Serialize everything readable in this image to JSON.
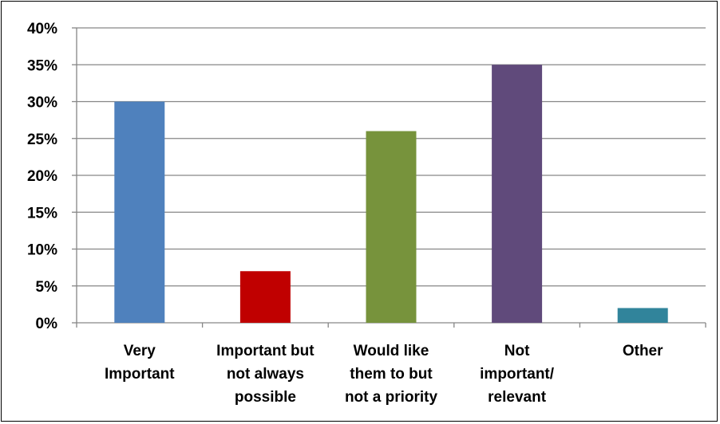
{
  "chart_data": {
    "type": "bar",
    "title": "",
    "xlabel": "",
    "ylabel": "",
    "ylim": [
      0,
      40
    ],
    "y_ticks": [
      "0%",
      "5%",
      "10%",
      "15%",
      "20%",
      "25%",
      "30%",
      "35%",
      "40%"
    ],
    "grid": true,
    "legend": "none",
    "categories": [
      [
        "Very",
        "Important"
      ],
      [
        "Important but",
        "not always",
        "possible"
      ],
      [
        "Would like",
        "them to but",
        "not a priority"
      ],
      [
        "Not",
        "important/",
        "relevant"
      ],
      [
        "Other"
      ]
    ],
    "values": [
      30,
      7,
      26,
      35,
      2
    ],
    "colors": [
      "#4f81bd",
      "#c00000",
      "#77933c",
      "#604a7b",
      "#31849b"
    ]
  }
}
